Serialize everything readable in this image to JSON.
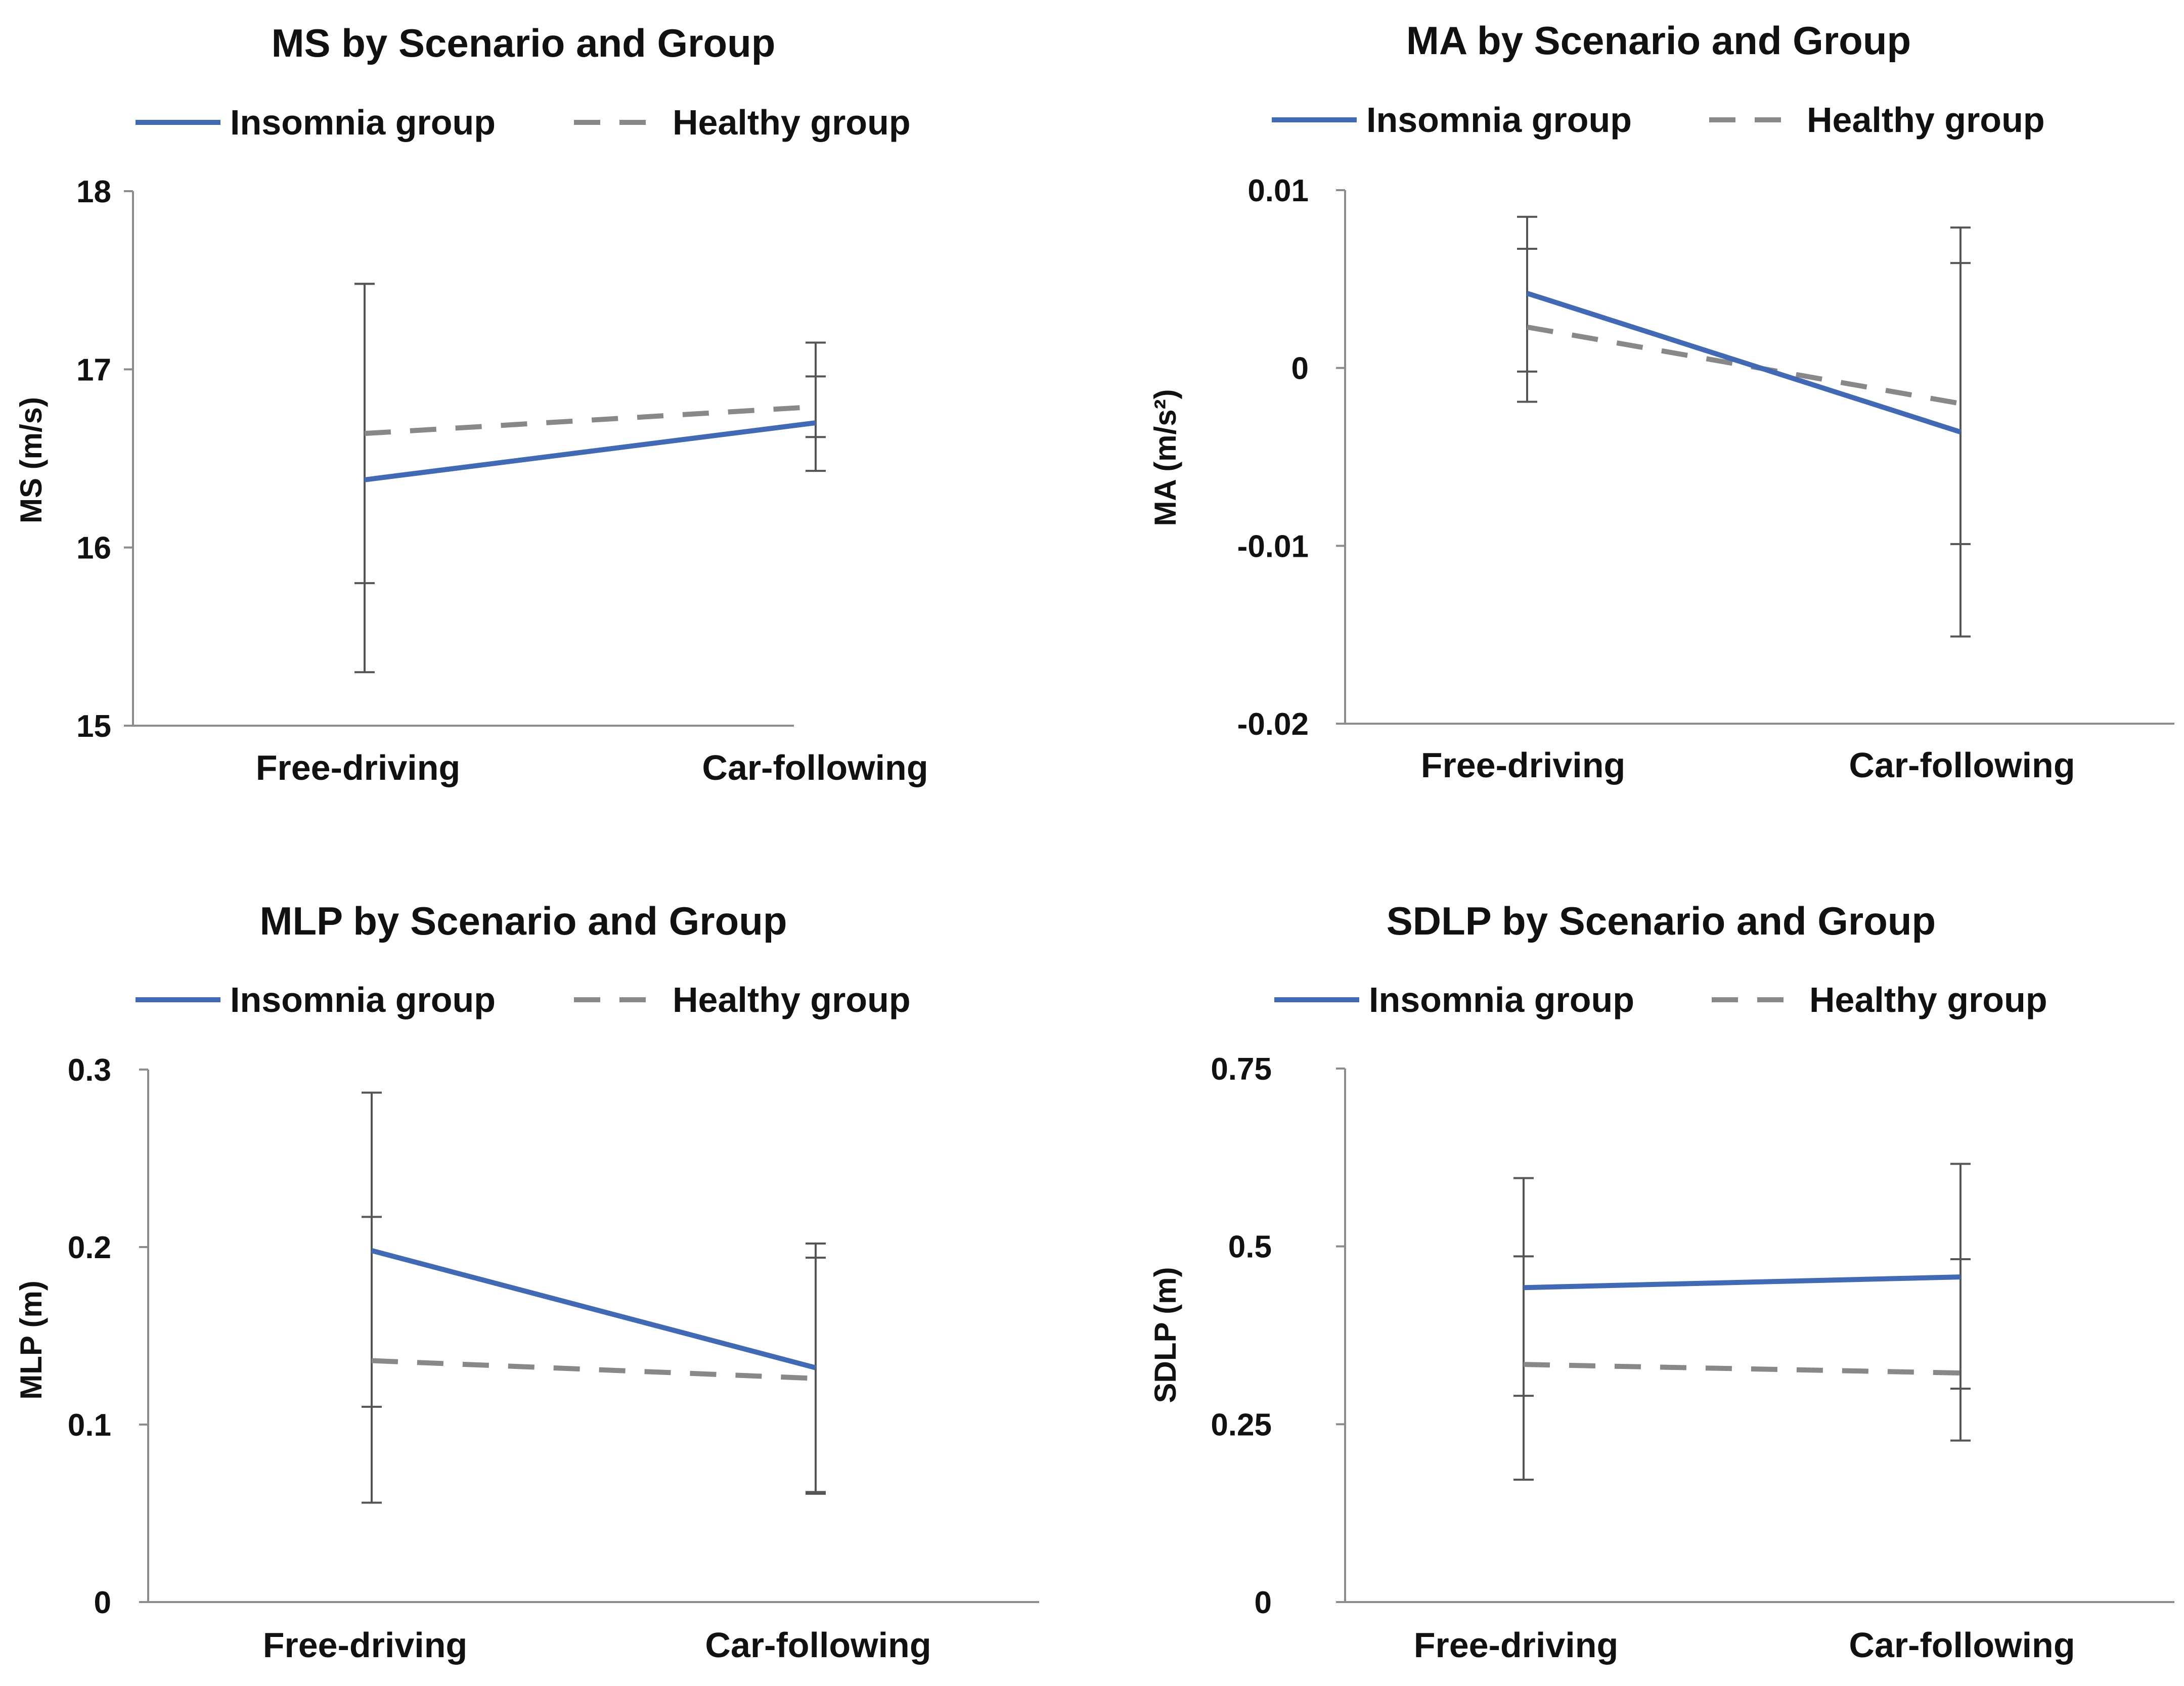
{
  "figure": {
    "legend": {
      "insomnia_label": "Insomnia group",
      "healthy_label": "Healthy group"
    }
  },
  "colors": {
    "insomnia": "#4169b4",
    "healthy": "#888888",
    "axis": "#8c8c8c",
    "error_bar": "#555555"
  },
  "chart_data": [
    {
      "type": "line",
      "title": "MS by Scenario and Group",
      "ylabel": "MS (m/s)",
      "categories": [
        "Free-driving",
        "Car-following"
      ],
      "ylim": [
        15,
        18
      ],
      "yticks": [
        15,
        16,
        17,
        18
      ],
      "ytick_labels": [
        "15",
        "16",
        "17",
        "18"
      ],
      "series": [
        {
          "name": "Insomnia group",
          "style": "solid",
          "values": [
            16.38,
            16.7
          ],
          "err_low": [
            15.3,
            16.43
          ],
          "err_high": [
            17.48,
            17.15
          ]
        },
        {
          "name": "Healthy group",
          "style": "dashed",
          "values": [
            16.64,
            16.79
          ],
          "err_low": [
            15.8,
            16.62
          ],
          "err_high": [
            17.48,
            16.96
          ]
        }
      ]
    },
    {
      "type": "line",
      "title": "MA by Scenario and Group",
      "ylabel": "MA (m/s²)",
      "categories": [
        "Free-driving",
        "Car-following"
      ],
      "ylim": [
        -0.02,
        0.01
      ],
      "yticks": [
        -0.02,
        -0.01,
        0,
        0.01
      ],
      "ytick_labels": [
        "-0.02",
        "-0.01",
        "0",
        "0.01"
      ],
      "series": [
        {
          "name": "Insomnia group",
          "style": "solid",
          "values": [
            0.0042,
            -0.0036
          ],
          "err_low": [
            -0.0019,
            -0.0151
          ],
          "err_high": [
            0.0085,
            0.0079
          ]
        },
        {
          "name": "Healthy group",
          "style": "dashed",
          "values": [
            0.0023,
            -0.002
          ],
          "err_low": [
            -0.0002,
            -0.0099
          ],
          "err_high": [
            0.0067,
            0.0059
          ]
        }
      ]
    },
    {
      "type": "line",
      "title": "MLP by Scenario and Group",
      "ylabel": "MLP (m)",
      "categories": [
        "Free-driving",
        "Car-following"
      ],
      "ylim": [
        0,
        0.3
      ],
      "yticks": [
        0,
        0.1,
        0.2,
        0.3
      ],
      "ytick_labels": [
        "0",
        "0.1",
        "0.2",
        "0.3"
      ],
      "series": [
        {
          "name": "Insomnia group",
          "style": "solid",
          "values": [
            0.198,
            0.132
          ],
          "err_low": [
            0.056,
            0.061
          ],
          "err_high": [
            0.287,
            0.202
          ]
        },
        {
          "name": "Healthy group",
          "style": "dashed",
          "values": [
            0.136,
            0.126
          ],
          "err_low": [
            0.11,
            0.062
          ],
          "err_high": [
            0.217,
            0.194
          ]
        }
      ]
    },
    {
      "type": "line",
      "title": "SDLP by Scenario and Group",
      "ylabel": "SDLP (m)",
      "categories": [
        "Free-driving",
        "Car-following"
      ],
      "ylim": [
        0,
        0.75
      ],
      "yticks": [
        0,
        0.25,
        0.5,
        0.75
      ],
      "ytick_labels": [
        "0",
        "0.25",
        "0.5",
        "0.75"
      ],
      "series": [
        {
          "name": "Insomnia group",
          "style": "solid",
          "values": [
            0.442,
            0.457
          ],
          "err_low": [
            0.172,
            0.227
          ],
          "err_high": [
            0.596,
            0.616
          ]
        },
        {
          "name": "Healthy group",
          "style": "dashed",
          "values": [
            0.334,
            0.322
          ],
          "err_low": [
            0.29,
            0.3
          ],
          "err_high": [
            0.486,
            0.482
          ]
        }
      ]
    }
  ]
}
